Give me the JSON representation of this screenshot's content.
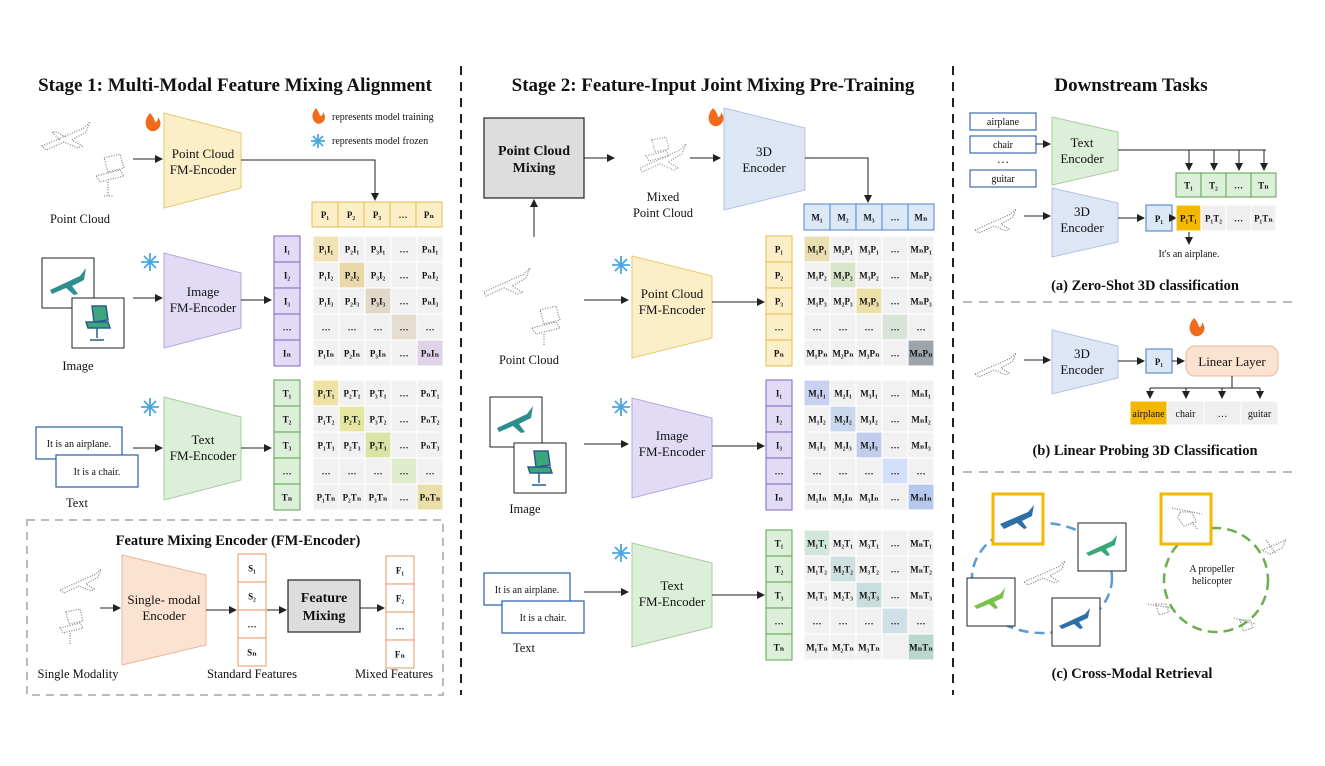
{
  "stage1": {
    "title": "Stage 1: Multi-Modal Feature Mixing Alignment",
    "legend_train": "represents model training",
    "legend_frozen": "represents model frozen",
    "point_cloud_label": "Point Cloud",
    "image_label": "Image",
    "text_label": "Text",
    "pc_encoder": [
      "Point Cloud",
      "FM-Encoder"
    ],
    "img_encoder": [
      "Image",
      "FM-Encoder"
    ],
    "txt_encoder": [
      "Text",
      "FM-Encoder"
    ],
    "text_card_1": "It is an airplane.",
    "text_card_2": "It is a chair.",
    "p_row": [
      "P₁",
      "P₂",
      "P₃",
      "…",
      "Pₙ"
    ],
    "i_col": [
      "I₁",
      "I₂",
      "I₃",
      "…",
      "Iₙ"
    ],
    "t_col": [
      "T₁",
      "T₂",
      "T₃",
      "…",
      "Tₙ"
    ],
    "pi_matrix": [
      [
        "P₁I₁",
        "P₂I₁",
        "P₃I₁",
        "…",
        "PₙI₁"
      ],
      [
        "P₁I₂",
        "P₂I₂",
        "P₃I₂",
        "…",
        "PₙI₂"
      ],
      [
        "P₁I₃",
        "P₂I₃",
        "P₃I₃",
        "…",
        "PₙI₃"
      ],
      [
        "…",
        "…",
        "…",
        "…",
        "…"
      ],
      [
        "P₁Iₙ",
        "P₂Iₙ",
        "P₃Iₙ",
        "…",
        "PₙIₙ"
      ]
    ],
    "pt_matrix": [
      [
        "P₁T₁",
        "P₂T₁",
        "P₃T₁",
        "…",
        "PₙT₁"
      ],
      [
        "P₁T₂",
        "P₂T₂",
        "P₃T₂",
        "…",
        "PₙT₂"
      ],
      [
        "P₁T₃",
        "P₂T₃",
        "P₃T₃",
        "…",
        "PₙT₃"
      ],
      [
        "…",
        "…",
        "…",
        "…",
        "…"
      ],
      [
        "P₁Tₙ",
        "P₂Tₙ",
        "P₃Tₙ",
        "…",
        "PₙTₙ"
      ]
    ]
  },
  "fm_encoder": {
    "title": "Feature Mixing Encoder (FM-Encoder)",
    "single_modality": "Single Modality",
    "encoder": [
      "Single- modal",
      "Encoder"
    ],
    "s_col": [
      "S₁",
      "S₂",
      "…",
      "Sₙ"
    ],
    "mixing": [
      "Feature",
      "Mixing"
    ],
    "f_col": [
      "F₁",
      "F₂",
      "…",
      "Fₙ"
    ],
    "standard_features": "Standard Features",
    "mixed_features": "Mixed Features"
  },
  "stage2": {
    "title": "Stage 2: Feature-Input Joint Mixing Pre-Training",
    "pc_mixing": [
      "Point Cloud",
      "Mixing"
    ],
    "mixed_pc": [
      "Mixed",
      "Point Cloud"
    ],
    "encoder3d": [
      "3D",
      "Encoder"
    ],
    "m_row": [
      "M₁",
      "M₂",
      "M₃",
      "…",
      "Mₙ"
    ],
    "point_cloud_label": "Point Cloud",
    "image_label": "Image",
    "text_label": "Text",
    "pc_encoder": [
      "Point Cloud",
      "FM-Encoder"
    ],
    "img_encoder": [
      "Image",
      "FM-Encoder"
    ],
    "txt_encoder": [
      "Text",
      "FM-Encoder"
    ],
    "text_card_1": "It is an airplane.",
    "text_card_2": "It is a chair.",
    "p_col": [
      "P₁",
      "P₂",
      "P₃",
      "…",
      "Pₙ"
    ],
    "i_col": [
      "I₁",
      "I₂",
      "I₃",
      "…",
      "Iₙ"
    ],
    "t_col": [
      "T₁",
      "T₂",
      "T₃",
      "…",
      "Tₙ"
    ],
    "mp_matrix": [
      [
        "M₁P₁",
        "M₂P₁",
        "M₃P₁",
        "…",
        "MₙP₁"
      ],
      [
        "M₁P₂",
        "M₂P₂",
        "M₃P₂",
        "…",
        "MₙP₂"
      ],
      [
        "M₁P₃",
        "M₂P₃",
        "M₃P₃",
        "…",
        "MₙP₃"
      ],
      [
        "…",
        "…",
        "…",
        "…",
        "…"
      ],
      [
        "M₁Pₙ",
        "M₂Pₙ",
        "M₃Pₙ",
        "…",
        "MₙPₙ"
      ]
    ],
    "mi_matrix": [
      [
        "M₁I₁",
        "M₂I₁",
        "M₃I₁",
        "…",
        "MₙI₁"
      ],
      [
        "M₁I₂",
        "M₂I₂",
        "M₃I₂",
        "…",
        "MₙI₂"
      ],
      [
        "M₁I₃",
        "M₂I₃",
        "M₃I₃",
        "…",
        "MₙI₃"
      ],
      [
        "…",
        "…",
        "…",
        "…",
        "…"
      ],
      [
        "M₁Iₙ",
        "M₂Iₙ",
        "M₃Iₙ",
        "…",
        "MₙIₙ"
      ]
    ],
    "mt_matrix": [
      [
        "M₁T₁",
        "M₂T₁",
        "M₃T₁",
        "…",
        "MₙT₁"
      ],
      [
        "M₁T₂",
        "M₂T₂",
        "M₃T₂",
        "…",
        "MₙT₂"
      ],
      [
        "M₁T₃",
        "M₂T₃",
        "M₃T₃",
        "…",
        "MₙT₃"
      ],
      [
        "…",
        "…",
        "…",
        "…",
        "…"
      ],
      [
        "M₁Tₙ",
        "M₂Tₙ",
        "M₃Tₙ",
        "",
        "MₙTₙ"
      ]
    ]
  },
  "downstream": {
    "title": "Downstream Tasks",
    "zs_labels": [
      "airplane",
      "chair",
      "…",
      "guitar"
    ],
    "text_encoder": [
      "Text",
      "Encoder"
    ],
    "encoder3d": [
      "3D",
      "Encoder"
    ],
    "t_row": [
      "T₁",
      "T₂",
      "…",
      "Tₙ"
    ],
    "p1": "P₁",
    "pt_row": [
      "P₁T₁",
      "P₁T₂",
      "…",
      "P₁Tₙ"
    ],
    "zs_result": "It's an airplane.",
    "caption_a": "(a) Zero-Shot 3D classification",
    "linear_layer": "Linear Layer",
    "lp_labels": [
      "airplane",
      "chair",
      "…",
      "guitar"
    ],
    "caption_b": "(b) Linear Probing 3D Classification",
    "helicopter_text": [
      "A propeller",
      "helicopter"
    ],
    "caption_c": "(c) Cross-Modal Retrieval"
  },
  "colors": {
    "pc": "#fcefc7",
    "pc_border": "#e8c35a",
    "img": "#e2dbf5",
    "img_border": "#8a6fc6",
    "txt": "#dcefd8",
    "txt_border": "#6aa861",
    "m_border": "#5b8fd0",
    "m_fill": "#dde8f6",
    "orange": "#f5b800"
  }
}
